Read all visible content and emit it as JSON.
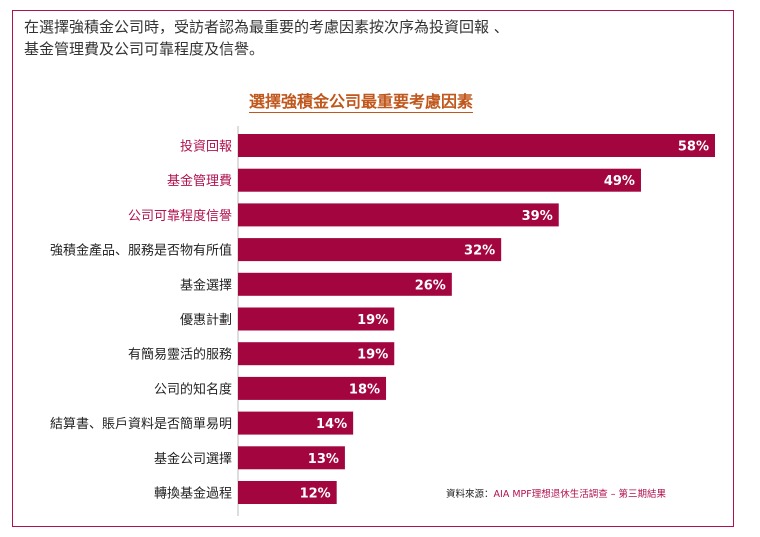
{
  "intro_text": [
    "在選擇強積金公司時，受訪者認為最重要的考慮因素按次序為投資回報 、",
    "基金管理費及公司可靠程度及信譽。"
  ],
  "chart_data": {
    "type": "bar",
    "orientation": "horizontal",
    "title": "選擇強積金公司最重要考慮因素",
    "categories": [
      "投資回報",
      "基金管理費",
      "公司可靠程度信譽",
      "強積金產品、服務是否物有所值",
      "基金選擇",
      "優惠計劃",
      "有簡易靈活的服務",
      "公司的知名度",
      "結算書、賬戶資料是否簡單易明",
      "基金公司選擇",
      "轉換基金過程"
    ],
    "values": [
      58,
      49,
      39,
      32,
      26,
      19,
      19,
      18,
      14,
      13,
      12
    ],
    "value_labels": [
      "58%",
      "49%",
      "39%",
      "32%",
      "26%",
      "19%",
      "19%",
      "18%",
      "14%",
      "13%",
      "12%"
    ],
    "highlighted_categories": [
      0,
      1,
      2
    ],
    "xlim": [
      0,
      60
    ],
    "grid": false,
    "legend": "none"
  },
  "source": {
    "prefix": "資料來源：",
    "text": "AIA MPF理想退休生活調查 – 第三期結果"
  },
  "colors": {
    "bar": "#a3063f",
    "highlight_label": "#b0124f",
    "label": "#222222",
    "title": "#c0571c",
    "frame": "#b0124f"
  }
}
